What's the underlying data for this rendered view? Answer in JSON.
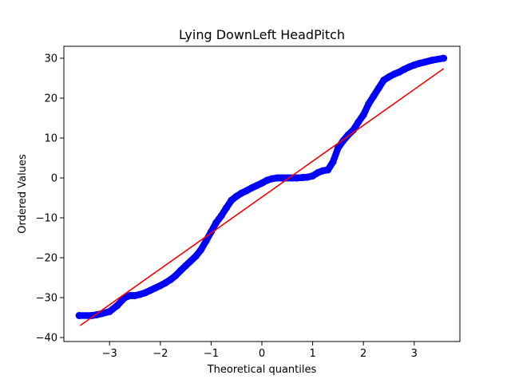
{
  "chart_data": {
    "type": "scatter",
    "title": "Lying DownLeft HeadPitch",
    "xlabel": "Theoretical quantiles",
    "ylabel": "Ordered Values",
    "xlim": [
      -3.9,
      3.9
    ],
    "ylim": [
      -41,
      33
    ],
    "xticks": [
      -3,
      -2,
      -1,
      0,
      1,
      2,
      3
    ],
    "yticks": [
      -40,
      -30,
      -20,
      -10,
      0,
      10,
      20,
      30
    ],
    "xtick_labels": [
      "−3",
      "−2",
      "−1",
      "0",
      "1",
      "2",
      "3"
    ],
    "ytick_labels": [
      "−40",
      "−30",
      "−20",
      "−10",
      "0",
      "10",
      "20",
      "30"
    ],
    "grid": false,
    "series": [
      {
        "kind": "points",
        "color": "#0000ff",
        "x": [
          -3.6,
          -3.35,
          -3.25,
          -3.15,
          -3.0,
          -2.85,
          -2.7,
          -2.6,
          -2.5,
          -2.4,
          -2.3,
          -2.2,
          -2.1,
          -2.0,
          -1.9,
          -1.8,
          -1.7,
          -1.6,
          -1.5,
          -1.4,
          -1.3,
          -1.2,
          -1.1,
          -1.0,
          -0.9,
          -0.8,
          -0.7,
          -0.6,
          -0.5,
          -0.4,
          -0.3,
          -0.2,
          -0.1,
          0.0,
          0.1,
          0.2,
          0.3,
          0.4,
          0.5,
          0.6,
          0.7,
          0.8,
          0.9,
          1.0,
          1.1,
          1.2,
          1.3,
          1.4,
          1.5,
          1.6,
          1.7,
          1.8,
          1.9,
          2.0,
          2.1,
          2.2,
          2.3,
          2.4,
          2.5,
          2.6,
          2.7,
          2.8,
          2.9,
          3.0,
          3.1,
          3.2,
          3.35,
          3.58
        ],
        "y": [
          -34.5,
          -34.5,
          -34.3,
          -34.0,
          -33.5,
          -32.0,
          -30.0,
          -29.5,
          -29.5,
          -29.2,
          -28.8,
          -28.2,
          -27.6,
          -27.0,
          -26.3,
          -25.5,
          -24.5,
          -23.2,
          -22.0,
          -20.8,
          -19.6,
          -18.0,
          -15.8,
          -13.5,
          -11.2,
          -9.5,
          -7.5,
          -5.6,
          -4.6,
          -3.8,
          -3.2,
          -2.5,
          -1.9,
          -1.3,
          -0.6,
          -0.2,
          0.0,
          0.0,
          0.0,
          0.0,
          0.0,
          0.1,
          0.2,
          0.5,
          1.3,
          1.8,
          2.0,
          4.0,
          7.5,
          9.3,
          10.8,
          12.0,
          14.0,
          15.8,
          18.5,
          20.5,
          22.5,
          24.5,
          25.3,
          26.0,
          26.5,
          27.2,
          27.8,
          28.3,
          28.7,
          29.0,
          29.5,
          30.0
        ]
      },
      {
        "kind": "fit-line",
        "color": "#ff0000",
        "x": [
          -3.58,
          3.58
        ],
        "y": [
          -37.0,
          27.4
        ]
      }
    ]
  }
}
